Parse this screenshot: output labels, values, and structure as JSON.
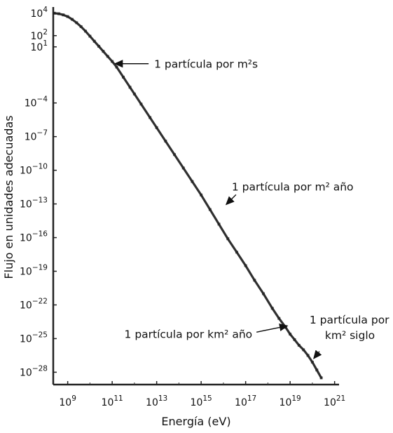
{
  "chart_data": {
    "type": "scatter",
    "title": "",
    "xlabel": "Energía (eV)",
    "ylabel": "Flujo en unidades adecuadas",
    "x_scale": "log",
    "y_scale": "log",
    "xlim_exp": [
      8.35,
      21.2
    ],
    "ylim_exp": [
      -29.1,
      4.3
    ],
    "x_ticks": [
      {
        "base": "10",
        "exp": "9",
        "v": 9
      },
      {
        "base": "10",
        "exp": "11",
        "v": 11
      },
      {
        "base": "10",
        "exp": "13",
        "v": 13
      },
      {
        "base": "10",
        "exp": "15",
        "v": 15
      },
      {
        "base": "10",
        "exp": "17",
        "v": 17
      },
      {
        "base": "10",
        "exp": "19",
        "v": 19
      },
      {
        "base": "10",
        "exp": "21",
        "v": 21
      }
    ],
    "y_ticks": [
      {
        "base": "10",
        "exp": "4",
        "v": 4
      },
      {
        "base": "10",
        "exp": "2",
        "v": 2
      },
      {
        "base": "10",
        "exp": "1",
        "v": 1
      },
      {
        "base": "10",
        "exp": "−4",
        "v": -4
      },
      {
        "base": "10",
        "exp": "−7",
        "v": -7
      },
      {
        "base": "10",
        "exp": "−10",
        "v": -10
      },
      {
        "base": "10",
        "exp": "−13",
        "v": -13
      },
      {
        "base": "10",
        "exp": "−16",
        "v": -16
      },
      {
        "base": "10",
        "exp": "−19",
        "v": -19
      },
      {
        "base": "10",
        "exp": "−22",
        "v": -22
      },
      {
        "base": "10",
        "exp": "−25",
        "v": -25
      },
      {
        "base": "10",
        "exp": "−28",
        "v": -28
      }
    ],
    "series": [
      {
        "points": [
          [
            8.4,
            4.0
          ],
          [
            8.6,
            3.95
          ],
          [
            8.8,
            3.85
          ],
          [
            9.0,
            3.7
          ],
          [
            9.2,
            3.45
          ],
          [
            9.4,
            3.15
          ],
          [
            9.6,
            2.8
          ],
          [
            9.8,
            2.4
          ],
          [
            10.0,
            1.95
          ],
          [
            10.2,
            1.5
          ],
          [
            10.4,
            1.05
          ],
          [
            10.6,
            0.6
          ],
          [
            10.8,
            0.15
          ],
          [
            11.0,
            -0.3
          ],
          [
            11.2,
            -0.8
          ],
          [
            11.5,
            -1.7
          ],
          [
            11.8,
            -2.6
          ],
          [
            12.0,
            -3.2
          ],
          [
            12.3,
            -4.1
          ],
          [
            12.7,
            -5.3
          ],
          [
            13.0,
            -6.2
          ],
          [
            13.4,
            -7.4
          ],
          [
            13.8,
            -8.6
          ],
          [
            14.2,
            -9.8
          ],
          [
            14.6,
            -11.0
          ],
          [
            15.0,
            -12.2
          ],
          [
            15.4,
            -13.5
          ],
          [
            15.8,
            -14.8
          ],
          [
            16.2,
            -16.1
          ],
          [
            16.6,
            -17.3
          ],
          [
            17.0,
            -18.5
          ],
          [
            17.4,
            -19.8
          ],
          [
            17.8,
            -21.0
          ],
          [
            18.2,
            -22.3
          ],
          [
            18.5,
            -23.2
          ],
          [
            18.8,
            -24.0
          ],
          [
            19.0,
            -24.6
          ],
          [
            19.2,
            -25.1
          ],
          [
            19.4,
            -25.6
          ],
          [
            19.6,
            -26.0
          ],
          [
            19.8,
            -26.5
          ],
          [
            20.0,
            -27.1
          ],
          [
            20.2,
            -27.8
          ],
          [
            20.4,
            -28.5
          ]
        ]
      }
    ],
    "annotations": [
      {
        "label": "1 partícula por m²s",
        "x_exp": 11.0,
        "y_exp": -0.5
      },
      {
        "label": "1 partícula por m² año",
        "x_exp": 16.0,
        "y_exp": -13.3
      },
      {
        "label": "1 partícula por km² año",
        "x_exp": 19.0,
        "y_exp": -23.8
      },
      {
        "label_line1": "1 partícula por",
        "label_line2": "km² siglo",
        "x_exp": 20.0,
        "y_exp": -26.9
      }
    ],
    "grid": false,
    "legend": "none"
  }
}
